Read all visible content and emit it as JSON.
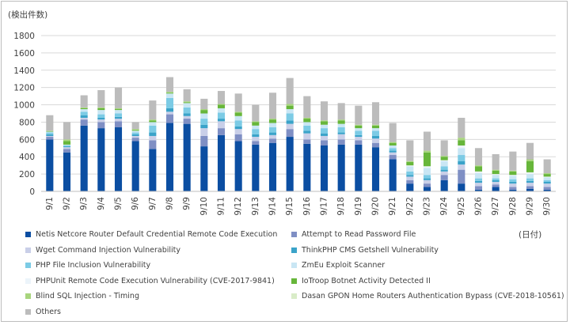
{
  "y_unit_label": "(検出件数)",
  "x_unit_label": "(日付)",
  "chart_data": {
    "type": "bar",
    "stacked": true,
    "ylim": [
      0,
      1800
    ],
    "yticks": [
      0,
      200,
      400,
      600,
      800,
      1000,
      1200,
      1400,
      1600,
      1800
    ],
    "grid": true,
    "legend_position": "bottom",
    "categories": [
      "9/1",
      "9/2",
      "9/3",
      "9/4",
      "9/5",
      "9/6",
      "9/7",
      "9/8",
      "9/9",
      "9/10",
      "9/11",
      "9/12",
      "9/13",
      "9/14",
      "9/15",
      "9/16",
      "9/17",
      "9/18",
      "9/19",
      "9/20",
      "9/21",
      "9/22",
      "9/23",
      "9/24",
      "9/25",
      "9/26",
      "9/27",
      "9/28",
      "9/29",
      "9/30"
    ],
    "series": [
      {
        "name": "Netis Netcore Router Default Credential Remote Code Execution",
        "color": "#0b4ea2",
        "values": [
          600,
          450,
          760,
          730,
          740,
          580,
          490,
          790,
          780,
          520,
          650,
          580,
          540,
          560,
          630,
          550,
          530,
          540,
          540,
          510,
          370,
          90,
          50,
          130,
          90,
          20,
          50,
          20,
          30,
          20
        ]
      },
      {
        "name": "Attempt to Read Password File",
        "color": "#7f8fc4",
        "values": [
          30,
          40,
          70,
          70,
          70,
          40,
          100,
          100,
          60,
          120,
          80,
          80,
          40,
          50,
          90,
          50,
          60,
          60,
          50,
          50,
          50,
          40,
          40,
          60,
          160,
          40,
          30,
          30,
          30,
          30
        ]
      },
      {
        "name": "Wget Command Injection Vulnerability",
        "color": "#c9cfe8",
        "values": [
          10,
          20,
          20,
          30,
          30,
          20,
          50,
          30,
          30,
          90,
          80,
          60,
          50,
          40,
          60,
          70,
          50,
          60,
          40,
          50,
          30,
          40,
          40,
          40,
          60,
          40,
          30,
          40,
          40,
          40
        ]
      },
      {
        "name": "ThinkPHP CMS Getshell Vulnerability",
        "color": "#3aa3c9",
        "values": [
          20,
          10,
          30,
          20,
          20,
          20,
          40,
          40,
          30,
          40,
          30,
          30,
          30,
          30,
          40,
          30,
          30,
          20,
          20,
          30,
          20,
          20,
          20,
          20,
          40,
          20,
          20,
          20,
          20,
          20
        ]
      },
      {
        "name": "PHP File Inclusion Vulnerability",
        "color": "#7ccbe5",
        "values": [
          20,
          10,
          40,
          40,
          40,
          20,
          80,
          120,
          70,
          70,
          70,
          70,
          60,
          60,
          80,
          60,
          60,
          60,
          50,
          60,
          30,
          40,
          40,
          40,
          70,
          30,
          20,
          30,
          30,
          20
        ]
      },
      {
        "name": "ZmEu Exploit Scanner",
        "color": "#c9e6f4",
        "values": [
          10,
          10,
          30,
          50,
          40,
          20,
          40,
          50,
          50,
          60,
          50,
          50,
          40,
          50,
          50,
          40,
          40,
          40,
          30,
          30,
          30,
          60,
          80,
          60,
          80,
          60,
          40,
          40,
          50,
          30
        ]
      },
      {
        "name": "PHPUnit Remote Code Execution Vulnerability (CVE-2017-9841)",
        "color": "#ecf4fa",
        "values": [
          0,
          0,
          0,
          0,
          0,
          0,
          0,
          0,
          0,
          0,
          0,
          0,
          0,
          0,
          0,
          0,
          0,
          0,
          0,
          0,
          0,
          10,
          20,
          10,
          30,
          20,
          10,
          10,
          20,
          10
        ]
      },
      {
        "name": "IoTroop Botnet Activity Detected II",
        "color": "#67b63a",
        "values": [
          5,
          40,
          10,
          20,
          10,
          10,
          20,
          10,
          10,
          40,
          40,
          40,
          40,
          40,
          40,
          40,
          40,
          40,
          30,
          30,
          30,
          40,
          160,
          40,
          60,
          60,
          40,
          40,
          130,
          30
        ]
      },
      {
        "name": "Blind SQL Injection - Timing",
        "color": "#a8d57e",
        "values": [
          5,
          20,
          10,
          10,
          10,
          10,
          10,
          10,
          10,
          10,
          10,
          10,
          10,
          10,
          20,
          10,
          10,
          10,
          10,
          10,
          10,
          10,
          20,
          10,
          30,
          10,
          10,
          10,
          20,
          10
        ]
      },
      {
        "name": "Dasan GPON Home Routers Authentication Bypass (CVE-2018-10561)",
        "color": "#d9ecc8",
        "values": [
          0,
          0,
          0,
          0,
          0,
          0,
          0,
          0,
          0,
          0,
          0,
          0,
          0,
          0,
          0,
          0,
          0,
          0,
          0,
          0,
          0,
          0,
          0,
          0,
          0,
          0,
          0,
          0,
          0,
          0
        ]
      },
      {
        "name": "Others",
        "color": "#bcbcbc",
        "values": [
          180,
          200,
          140,
          200,
          240,
          80,
          220,
          170,
          140,
          120,
          150,
          210,
          190,
          300,
          300,
          250,
          220,
          190,
          220,
          260,
          220,
          240,
          220,
          180,
          230,
          200,
          180,
          220,
          190,
          160
        ]
      }
    ]
  }
}
